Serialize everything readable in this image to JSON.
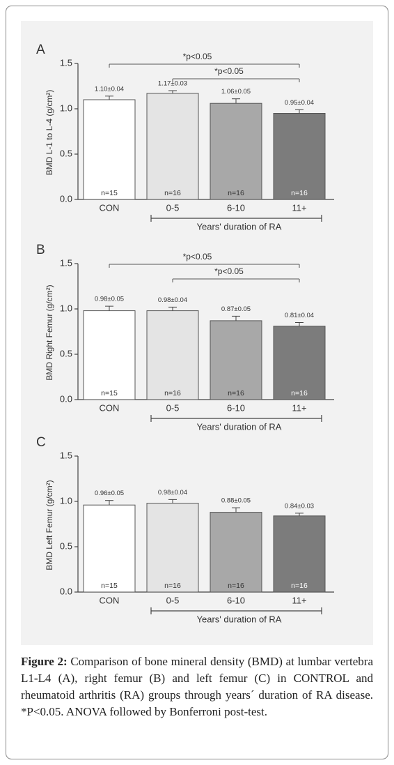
{
  "chart_data": [
    {
      "type": "bar",
      "panel_label": "A",
      "ylabel": "BMD L-1 to L-4 (g/cm²)",
      "xlabel": "Years' duration of RA",
      "categories": [
        "CON",
        "0-5",
        "6-10",
        "11+"
      ],
      "values": [
        1.1,
        1.17,
        1.06,
        0.95
      ],
      "errors": [
        0.04,
        0.03,
        0.05,
        0.04
      ],
      "value_labels": [
        "1.10±0.04",
        "1.17±0.03",
        "1.06±0.05",
        "0.95±0.04"
      ],
      "n_labels": [
        "n=15",
        "n=16",
        "n=16",
        "n=16"
      ],
      "colors": [
        "#ffffff",
        "#e4e4e4",
        "#a8a8a8",
        "#7c7c7c"
      ],
      "ylim": [
        0,
        1.5
      ],
      "yticks": [
        {
          "value": 0,
          "label": "0.0"
        },
        {
          "value": 0.5,
          "label": "0.5"
        },
        {
          "value": 1,
          "label": "1.0"
        },
        {
          "value": 1.5,
          "label": "1.5"
        }
      ],
      "significance": [
        {
          "between": [
            "CON",
            "11+"
          ],
          "label": "*p<0.05"
        },
        {
          "between": [
            "0-5",
            "11+"
          ],
          "label": "*p<0.05"
        }
      ]
    },
    {
      "type": "bar",
      "panel_label": "B",
      "ylabel": "BMD Right Femur (g/cm²)",
      "xlabel": "Years' duration of RA",
      "categories": [
        "CON",
        "0-5",
        "6-10",
        "11+"
      ],
      "values": [
        0.98,
        0.98,
        0.87,
        0.81
      ],
      "errors": [
        0.05,
        0.04,
        0.05,
        0.04
      ],
      "value_labels": [
        "0.98±0.05",
        "0.98±0.04",
        "0.87±0.05",
        "0.81±0.04"
      ],
      "n_labels": [
        "n=15",
        "n=16",
        "n=16",
        "n=16"
      ],
      "colors": [
        "#ffffff",
        "#e4e4e4",
        "#a8a8a8",
        "#7c7c7c"
      ],
      "ylim": [
        0,
        1.5
      ],
      "yticks": [
        {
          "value": 0,
          "label": "0.0"
        },
        {
          "value": 0.5,
          "label": "0.5"
        },
        {
          "value": 1,
          "label": "1.0"
        },
        {
          "value": 1.5,
          "label": "1.5"
        }
      ],
      "significance": [
        {
          "between": [
            "CON",
            "11+"
          ],
          "label": "*p<0.05"
        },
        {
          "between": [
            "0-5",
            "11+"
          ],
          "label": "*p<0.05"
        }
      ]
    },
    {
      "type": "bar",
      "panel_label": "C",
      "ylabel": "BMD Left Femur (g/cm²)",
      "xlabel": "Years' duration of RA",
      "categories": [
        "CON",
        "0-5",
        "6-10",
        "11+"
      ],
      "values": [
        0.96,
        0.98,
        0.88,
        0.84
      ],
      "errors": [
        0.05,
        0.04,
        0.05,
        0.03
      ],
      "value_labels": [
        "0.96±0.05",
        "0.98±0.04",
        "0.88±0.05",
        "0.84±0.03"
      ],
      "n_labels": [
        "n=15",
        "n=16",
        "n=16",
        "n=16"
      ],
      "colors": [
        "#ffffff",
        "#e4e4e4",
        "#a8a8a8",
        "#7c7c7c"
      ],
      "ylim": [
        0,
        1.5
      ],
      "yticks": [
        {
          "value": 0,
          "label": "0.0"
        },
        {
          "value": 0.5,
          "label": "0.5"
        },
        {
          "value": 1,
          "label": "1.0"
        },
        {
          "value": 1.5,
          "label": "1.5"
        }
      ],
      "significance": []
    }
  ],
  "caption": {
    "label": "Figure 2:",
    "text": "Comparison of bone mineral density (BMD) at lumbar vertebra L1-L4 (A), right femur (B) and left femur (C) in CONTROL and rheumatoid arthritis (RA) groups through years´ duration of RA disease. *P<0.05. ANOVA followed by Bonferroni post-test."
  }
}
